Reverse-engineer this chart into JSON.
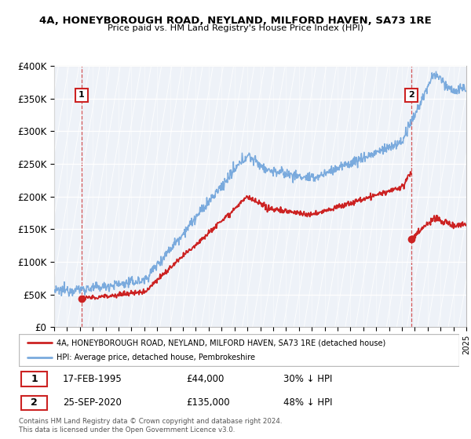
{
  "title": "4A, HONEYBOROUGH ROAD, NEYLAND, MILFORD HAVEN, SA73 1RE",
  "subtitle": "Price paid vs. HM Land Registry's House Price Index (HPI)",
  "ylim": [
    0,
    400000
  ],
  "yticks": [
    0,
    50000,
    100000,
    150000,
    200000,
    250000,
    300000,
    350000,
    400000
  ],
  "ytick_labels": [
    "£0",
    "£50K",
    "£100K",
    "£150K",
    "£200K",
    "£250K",
    "£300K",
    "£350K",
    "£400K"
  ],
  "hpi_color": "#7aaadd",
  "price_color": "#cc2222",
  "sale1_date_num": 1995.12,
  "sale1_price": 44000,
  "sale1_label": "1",
  "sale1_date_str": "17-FEB-1995",
  "sale1_hpi_pct": "30% ↓ HPI",
  "sale2_date_num": 2020.73,
  "sale2_price": 135000,
  "sale2_label": "2",
  "sale2_date_str": "25-SEP-2020",
  "sale2_hpi_pct": "48% ↓ HPI",
  "legend_line1": "4A, HONEYBOROUGH ROAD, NEYLAND, MILFORD HAVEN, SA73 1RE (detached house)",
  "legend_line2": "HPI: Average price, detached house, Pembrokeshire",
  "footer": "Contains HM Land Registry data © Crown copyright and database right 2024.\nThis data is licensed under the Open Government Licence v3.0.",
  "xmin": 1993,
  "xmax": 2025,
  "bg_color": "#eef2f8",
  "hatch_color": "#ffffff"
}
